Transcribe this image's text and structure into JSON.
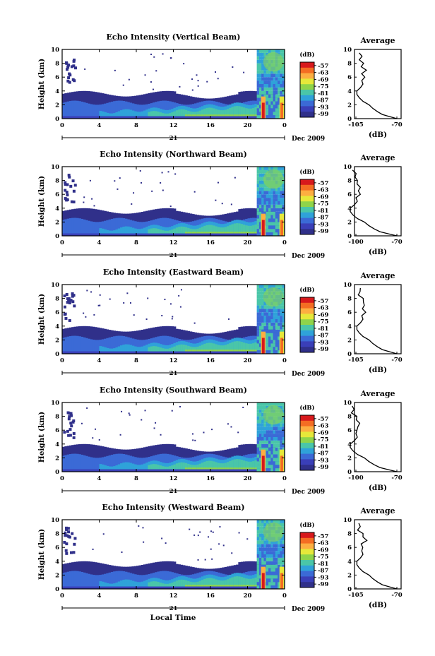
{
  "chart_data": {
    "type": "heatmap",
    "panels": [
      {
        "title": "Echo Intensity (Vertical Beam)"
      },
      {
        "title": "Echo Intensity (Northward Beam)"
      },
      {
        "title": "Echo Intensity (Eastward Beam)"
      },
      {
        "title": "Echo Intensity (Southward Beam)"
      },
      {
        "title": "Echo Intensity (Westward Beam)"
      }
    ],
    "ylabel": "Height (km)",
    "ylim": [
      0,
      10
    ],
    "y_ticks": [
      "0",
      "2",
      "4",
      "6",
      "8",
      "10"
    ],
    "xlim": [
      0,
      24
    ],
    "x_ticks": [
      "0",
      "4",
      "8",
      "12",
      "16",
      "20",
      "0"
    ],
    "date_day": "21",
    "date_month": "Dec 2009",
    "xlabel": "Local Time",
    "colorbar": {
      "unit": "(dB)",
      "labels": [
        "-57",
        "-63",
        "-69",
        "-75",
        "-81",
        "-87",
        "-93",
        "-99"
      ],
      "colors": [
        "#d7191c",
        "#f46d23",
        "#fdae41",
        "#e6e83a",
        "#8fd44a",
        "#4ac6a8",
        "#2fa2d9",
        "#3b6ad6",
        "#3a3fb8",
        "#30308a"
      ]
    },
    "average": {
      "title": "Average",
      "xlabel": "(dB)",
      "y_ticks": [
        "0",
        "2",
        "4",
        "6",
        "8",
        "10"
      ],
      "x_tick_labels": [
        [
          "-105",
          "-70"
        ],
        [
          "-100",
          "-70"
        ],
        [
          "-105",
          "-70"
        ],
        [
          "-100",
          "-70"
        ],
        [
          "-105",
          "-70"
        ]
      ],
      "profile": {
        "height_km": [
          0,
          0.3,
          0.6,
          1.0,
          1.5,
          2.0,
          2.5,
          3.0,
          3.5,
          4.0,
          4.5,
          5.0,
          5.5,
          6.0,
          6.5,
          7.0,
          7.5,
          8.0,
          8.5,
          9.0,
          9.5
        ],
        "db": [
          -70,
          -76,
          -82,
          -86,
          -90,
          -93,
          -98,
          -101,
          -103,
          -103,
          -100,
          -98,
          -99,
          -97,
          -98,
          -96,
          -99,
          -98,
          -101,
          -100,
          -101
        ]
      }
    }
  }
}
